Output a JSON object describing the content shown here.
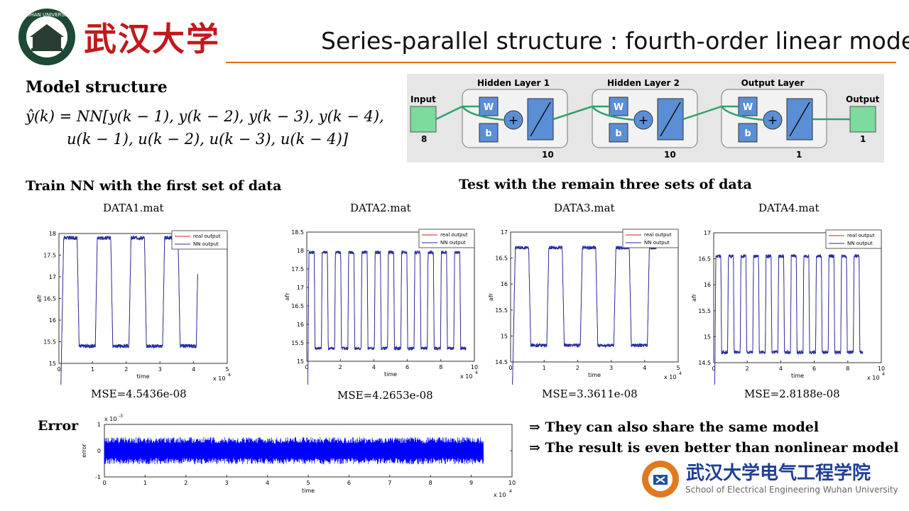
{
  "header": {
    "title": "Series-parallel structure : fourth-order linear model",
    "university_name_cn": "武汉大学",
    "seal_text": "WUHAN UNIVERSITY"
  },
  "model": {
    "heading": "Model structure",
    "equation_line1": "ŷ(k) = NN[y(k − 1), y(k − 2), y(k − 3), y(k − 4),",
    "equation_line2": "u(k − 1), u(k − 2), u(k − 3), u(k − 4)]"
  },
  "network": {
    "input_label": "Input",
    "input_size": "8",
    "layers": [
      {
        "title": "Hidden Layer 1",
        "size": "10",
        "w": "W",
        "b": "b"
      },
      {
        "title": "Hidden Layer 2",
        "size": "10",
        "w": "W",
        "b": "b"
      },
      {
        "title": "Output Layer",
        "size": "1",
        "w": "W",
        "b": "b"
      }
    ],
    "output_label": "Output",
    "output_size": "1",
    "sum_symbol": "+"
  },
  "train_heading": "Train NN with the first set of data",
  "test_heading": "Test with the remain three sets of data",
  "error_heading": "Error",
  "conclusions": [
    "⇒ They can also share the same model",
    "⇒ The result is even better than nonlinear model"
  ],
  "school": {
    "name_cn": "武汉大学电气工程学院",
    "name_en": "School of Electrical Engineering Wuhan University"
  },
  "colors": {
    "accent": "#e46c0a",
    "nn_output": "#1f2fa5",
    "real_output": "#d22020",
    "error": "#0000ff"
  },
  "legend": {
    "real": "real output",
    "nn": "NN output"
  },
  "chart_data": [
    {
      "type": "line",
      "file_label": "DATA1.mat",
      "mse": "MSE=4.5436e-08",
      "xlabel": "time",
      "ylabel": "afr",
      "x_multiplier": "x 10^4",
      "xlim": [
        0,
        5
      ],
      "ylim": [
        15,
        18
      ],
      "xticks": [
        "0",
        "1",
        "2",
        "3",
        "4",
        "5"
      ],
      "yticks": [
        "15",
        "15.5",
        "16",
        "16.5",
        "17",
        "17.5",
        "18"
      ],
      "square_wave": {
        "low": 15.4,
        "high": 17.9,
        "period": 1.0,
        "cycles": 4,
        "end": 4.12
      },
      "series": [
        {
          "name": "real output"
        },
        {
          "name": "NN output"
        }
      ]
    },
    {
      "type": "line",
      "file_label": "DATA2.mat",
      "mse": "MSE=4.2653e-08",
      "xlabel": "time",
      "ylabel": "afr",
      "x_multiplier": "x 10^4",
      "xlim": [
        0,
        10
      ],
      "ylim": [
        15,
        18.5
      ],
      "xticks": [
        "0",
        "2",
        "4",
        "6",
        "8",
        "10"
      ],
      "yticks": [
        "15",
        "15.5",
        "16",
        "16.5",
        "17",
        "17.5",
        "18",
        "18.5"
      ],
      "square_wave": {
        "low": 15.35,
        "high": 17.95,
        "period": 0.79,
        "cycles": 12,
        "end": 9.5
      },
      "series": [
        {
          "name": "real output"
        },
        {
          "name": "NN output"
        }
      ]
    },
    {
      "type": "line",
      "file_label": "DATA3.mat",
      "mse": "MSE=3.3611e-08",
      "xlabel": "time",
      "ylabel": "afr",
      "x_multiplier": "x 10^4",
      "xlim": [
        0,
        5
      ],
      "ylim": [
        14.5,
        17
      ],
      "xticks": [
        "0",
        "1",
        "2",
        "3",
        "4",
        "5"
      ],
      "yticks": [
        "14.5",
        "15",
        "15.5",
        "16",
        "16.5",
        "17"
      ],
      "square_wave": {
        "low": 14.82,
        "high": 16.7,
        "period": 1.0,
        "cycles": 4,
        "end": 4.35
      },
      "series": [
        {
          "name": "real output"
        },
        {
          "name": "NN output"
        }
      ]
    },
    {
      "type": "line",
      "file_label": "DATA4.mat",
      "mse": "MSE=2.8188e-08",
      "xlabel": "time",
      "ylabel": "afr",
      "x_multiplier": "x 10^4",
      "xlim": [
        0,
        10
      ],
      "ylim": [
        14.5,
        17
      ],
      "xticks": [
        "0",
        "2",
        "4",
        "6",
        "8",
        "10"
      ],
      "yticks": [
        "14.5",
        "15",
        "15.5",
        "16",
        "16.5",
        "17"
      ],
      "square_wave": {
        "low": 14.7,
        "high": 16.55,
        "period": 0.75,
        "cycles": 12,
        "end": 8.9
      },
      "series": [
        {
          "name": "real output"
        },
        {
          "name": "NN output"
        }
      ]
    },
    {
      "type": "line",
      "xlabel": "time",
      "ylabel": "error",
      "x_multiplier": "x 10^4",
      "y_multiplier": "x 10^-3",
      "xlim": [
        0,
        10
      ],
      "ylim": [
        -1,
        1
      ],
      "xticks": [
        "0",
        "1",
        "2",
        "3",
        "4",
        "5",
        "6",
        "7",
        "8",
        "9",
        "10"
      ],
      "yticks": [
        "-1",
        "0",
        "1"
      ],
      "noise": {
        "amplitude": 0.4,
        "end": 9.3
      },
      "series": [
        {
          "name": "error"
        }
      ]
    }
  ]
}
